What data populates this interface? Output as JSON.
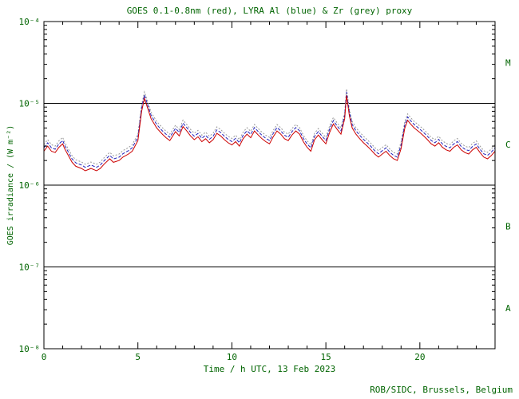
{
  "page": {
    "background": "#ffffff",
    "text_color": "#006400",
    "axis_color": "#000000"
  },
  "chart_data": {
    "type": "line",
    "title": "GOES 0.1-0.8nm (red), LYRA Al (blue) & Zr (grey) proxy",
    "xlabel": "Time / h UTC, 13 Feb 2023",
    "ylabel": "GOES irradiance / (W m⁻²)",
    "credit": "ROB/SIDC, Brussels, Belgium",
    "xlim": [
      0,
      24
    ],
    "ylim_log10": [
      -8,
      -4
    ],
    "x_major_ticks": [
      0,
      5,
      10,
      15,
      20
    ],
    "x_minor_step": 1,
    "y_tick_labels": [
      "10⁻⁸",
      "10⁻⁷",
      "10⁻⁶",
      "10⁻⁵",
      "10⁻⁴"
    ],
    "hlines": [
      1e-05,
      1e-06,
      1e-07
    ],
    "flare_class_labels": [
      {
        "label": "M",
        "log10_center": -4.5
      },
      {
        "label": "C",
        "log10_center": -5.5
      },
      {
        "label": "B",
        "log10_center": -6.5
      },
      {
        "label": "A",
        "log10_center": -7.5
      }
    ],
    "grid": false,
    "legend": "in title",
    "values_scale": 1e-06,
    "values_unit": "W m^-2",
    "x": [
      0,
      0.2,
      0.4,
      0.6,
      0.8,
      1.0,
      1.1,
      1.3,
      1.5,
      1.7,
      2.0,
      2.2,
      2.5,
      2.8,
      3.0,
      3.2,
      3.5,
      3.7,
      4.0,
      4.2,
      4.5,
      4.7,
      5.0,
      5.2,
      5.35,
      5.5,
      5.7,
      6.0,
      6.3,
      6.5,
      6.7,
      7.0,
      7.2,
      7.4,
      7.6,
      7.8,
      8.0,
      8.2,
      8.4,
      8.6,
      8.8,
      9.0,
      9.2,
      9.4,
      9.6,
      9.8,
      10.0,
      10.2,
      10.4,
      10.6,
      10.8,
      11.0,
      11.2,
      11.4,
      11.6,
      11.8,
      12.0,
      12.2,
      12.4,
      12.6,
      12.8,
      13.0,
      13.2,
      13.4,
      13.6,
      13.8,
      14.0,
      14.2,
      14.4,
      14.6,
      14.8,
      15.0,
      15.2,
      15.4,
      15.6,
      15.8,
      16.0,
      16.1,
      16.25,
      16.4,
      16.6,
      16.8,
      17.0,
      17.2,
      17.4,
      17.6,
      17.8,
      18.0,
      18.2,
      18.4,
      18.6,
      18.8,
      19.0,
      19.2,
      19.35,
      19.5,
      19.7,
      20.0,
      20.2,
      20.4,
      20.6,
      20.8,
      21.0,
      21.2,
      21.4,
      21.6,
      21.8,
      22.0,
      22.2,
      22.4,
      22.6,
      22.8,
      23.0,
      23.2,
      23.4,
      23.6,
      23.8,
      24.0
    ],
    "series": [
      {
        "name": "LYRA Zr proxy",
        "color": "#999999",
        "dash": "2 2",
        "values": [
          3.12,
          3.6,
          3.12,
          3.0,
          3.48,
          3.84,
          3.36,
          2.76,
          2.28,
          2.04,
          1.92,
          1.8,
          1.92,
          1.8,
          1.92,
          2.16,
          2.52,
          2.28,
          2.4,
          2.64,
          2.88,
          3.12,
          4.2,
          9.6,
          13.8,
          10.8,
          7.8,
          6.0,
          5.04,
          4.56,
          4.2,
          5.4,
          4.8,
          6.24,
          5.52,
          4.8,
          4.32,
          4.68,
          4.08,
          4.44,
          3.96,
          4.32,
          5.16,
          4.8,
          4.32,
          3.96,
          3.72,
          4.08,
          3.6,
          4.44,
          5.04,
          4.56,
          5.52,
          4.92,
          4.44,
          4.08,
          3.84,
          4.68,
          5.52,
          5.04,
          4.44,
          4.2,
          4.92,
          5.52,
          5.04,
          4.08,
          3.48,
          3.12,
          4.32,
          4.92,
          4.32,
          3.84,
          5.28,
          6.72,
          5.76,
          5.04,
          7.8,
          15.0,
          8.4,
          6.0,
          5.04,
          4.44,
          3.96,
          3.6,
          3.24,
          2.88,
          2.64,
          2.88,
          3.12,
          2.76,
          2.52,
          2.4,
          3.36,
          6.0,
          7.44,
          6.72,
          6.0,
          5.28,
          4.8,
          4.32,
          3.84,
          3.6,
          3.96,
          3.48,
          3.24,
          3.12,
          3.48,
          3.72,
          3.24,
          3.0,
          2.88,
          3.24,
          3.48,
          3.0,
          2.64,
          2.52,
          2.76,
          3.12
        ]
      },
      {
        "name": "LYRA Al proxy",
        "color": "#2222bb",
        "dash": "4 2",
        "values": [
          2.86,
          3.3,
          2.86,
          2.75,
          3.19,
          3.52,
          3.08,
          2.53,
          2.09,
          1.87,
          1.76,
          1.65,
          1.76,
          1.65,
          1.76,
          1.98,
          2.31,
          2.09,
          2.2,
          2.42,
          2.64,
          2.86,
          3.85,
          8.8,
          12.65,
          9.9,
          7.15,
          5.5,
          4.62,
          4.18,
          3.85,
          4.95,
          4.4,
          5.72,
          5.06,
          4.4,
          3.96,
          4.29,
          3.74,
          4.07,
          3.63,
          3.96,
          4.73,
          4.4,
          3.96,
          3.63,
          3.41,
          3.74,
          3.3,
          4.07,
          4.62,
          4.18,
          5.06,
          4.51,
          4.07,
          3.74,
          3.52,
          4.29,
          5.06,
          4.62,
          4.07,
          3.85,
          4.51,
          5.06,
          4.62,
          3.74,
          3.19,
          2.86,
          3.96,
          4.51,
          3.96,
          3.52,
          4.84,
          6.16,
          5.28,
          4.62,
          7.15,
          13.75,
          7.7,
          5.5,
          4.62,
          4.07,
          3.63,
          3.3,
          2.97,
          2.64,
          2.42,
          2.64,
          2.86,
          2.53,
          2.31,
          2.2,
          3.08,
          5.5,
          6.82,
          6.16,
          5.5,
          4.84,
          4.4,
          3.96,
          3.52,
          3.3,
          3.63,
          3.19,
          2.97,
          2.86,
          3.19,
          3.41,
          2.97,
          2.75,
          2.64,
          2.97,
          3.19,
          2.75,
          2.42,
          2.31,
          2.53,
          2.86
        ]
      },
      {
        "name": "GOES 0.1-0.8nm",
        "color": "#cc0000",
        "dash": "",
        "values": [
          2.6,
          3.0,
          2.6,
          2.5,
          2.9,
          3.2,
          2.8,
          2.3,
          1.9,
          1.7,
          1.6,
          1.5,
          1.6,
          1.5,
          1.6,
          1.8,
          2.1,
          1.9,
          2.0,
          2.2,
          2.4,
          2.6,
          3.5,
          8.0,
          11.5,
          9.0,
          6.5,
          5.0,
          4.2,
          3.8,
          3.5,
          4.5,
          4.0,
          5.2,
          4.6,
          4.0,
          3.6,
          3.9,
          3.4,
          3.7,
          3.3,
          3.6,
          4.3,
          4.0,
          3.6,
          3.3,
          3.1,
          3.4,
          3.0,
          3.7,
          4.2,
          3.8,
          4.6,
          4.1,
          3.7,
          3.4,
          3.2,
          3.9,
          4.6,
          4.2,
          3.7,
          3.5,
          4.1,
          4.6,
          4.2,
          3.4,
          2.9,
          2.6,
          3.6,
          4.1,
          3.6,
          3.2,
          4.4,
          5.6,
          4.8,
          4.2,
          6.5,
          12.5,
          7.0,
          5.0,
          4.2,
          3.7,
          3.3,
          3.0,
          2.7,
          2.4,
          2.2,
          2.4,
          2.6,
          2.3,
          2.1,
          2.0,
          2.8,
          5.0,
          6.2,
          5.6,
          5.0,
          4.4,
          4.0,
          3.6,
          3.2,
          3.0,
          3.3,
          2.9,
          2.7,
          2.6,
          2.9,
          3.1,
          2.7,
          2.5,
          2.4,
          2.7,
          2.9,
          2.5,
          2.2,
          2.1,
          2.3,
          2.6
        ]
      }
    ]
  }
}
